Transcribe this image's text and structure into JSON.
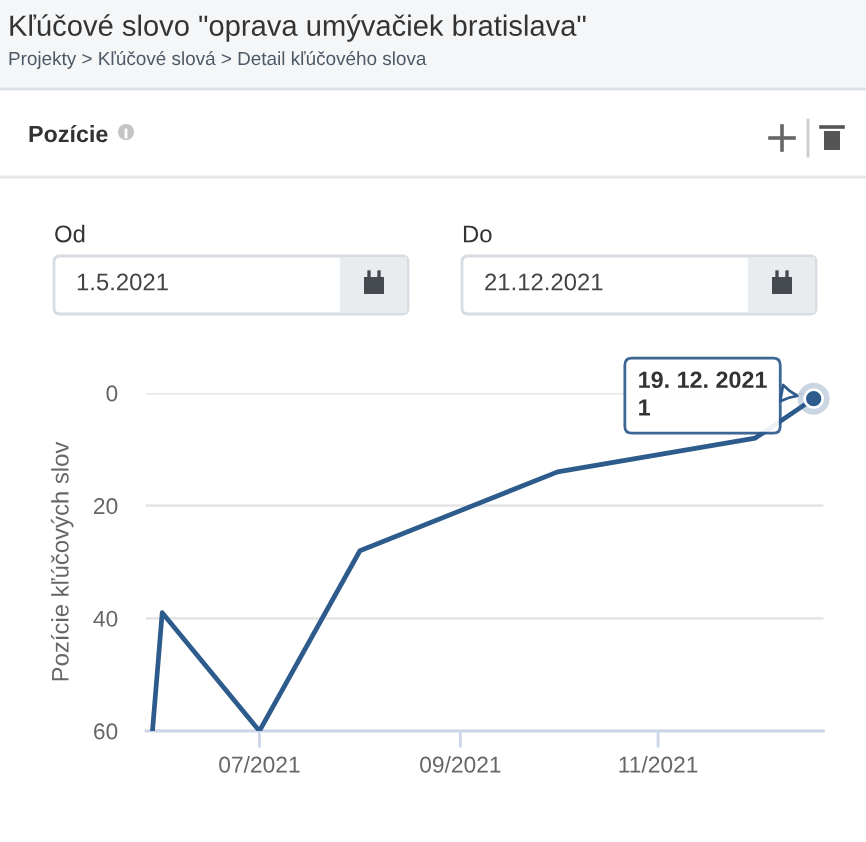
{
  "chart_data": {
    "type": "line",
    "title": "Kľúčové slovo \"oprava umývačiek bratislava\"",
    "subtitle": "Projekty > Kľúčové slová > Detail kľúčového slova",
    "ylabel": "Pozície kľúčových slov",
    "x": [
      "2021-05-29",
      "2021-06-01",
      "2021-07-01",
      "2021-08-01",
      "2021-10-01",
      "2021-12-01",
      "2021-12-19"
    ],
    "series": [
      {
        "color": "#2d5b8c",
        "values": [
          60,
          39,
          60,
          28,
          14,
          8,
          1
        ]
      }
    ],
    "xlim": [
      "2021-05-27",
      "2021-12-22"
    ],
    "xticks": [
      {
        "value": "2021-07-01",
        "label": "07/2021"
      },
      {
        "value": "2021-09-01",
        "label": "09/2021"
      },
      {
        "value": "2021-11-01",
        "label": "11/2021"
      }
    ],
    "ylim": [
      60,
      0
    ],
    "yticks": [
      0,
      20,
      40,
      60
    ],
    "grid": "y",
    "marker": "none",
    "line_style": "solid",
    "annotations": [
      "Pozície",
      "Od",
      "1.5.2021",
      "Do",
      "21.12.2021",
      {
        "text": "19. 12. 2021\n1",
        "x": "2021-12-19",
        "y": 1
      }
    ]
  }
}
